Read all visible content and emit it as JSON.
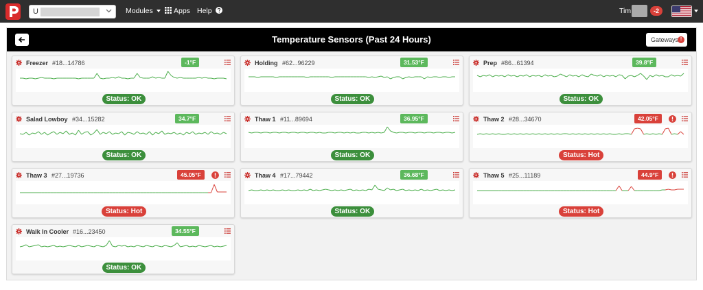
{
  "header": {
    "org_select_prefix": "U",
    "modules_label": "Modules",
    "apps_label": "Apps",
    "help_label": "Help",
    "user_name": "Tim",
    "notification_count": "-2"
  },
  "page": {
    "title": "Temperature Sensors (Past 24 Hours)",
    "gateways_label": "Gateways",
    "gateways_alert": "!"
  },
  "colors": {
    "ok": "#3c8f3c",
    "hot": "#d9413a",
    "temp_ok": "#5cb85c",
    "line_ok": "#4cae4c",
    "line_hot": "#d9413a"
  },
  "sensors": [
    {
      "name": "Freezer",
      "id": "#18...14786",
      "temp": "-1°F",
      "state": "ok",
      "status": "Status: OK",
      "readings": [
        20,
        20,
        19,
        20,
        20,
        19,
        20,
        21,
        20,
        20,
        20,
        19,
        20,
        20,
        20,
        20,
        20,
        20,
        20,
        19,
        20,
        20,
        20,
        20,
        20,
        27,
        20,
        19,
        20,
        20,
        21,
        20,
        22,
        20,
        20,
        19,
        20,
        20,
        27,
        21,
        20,
        20,
        20,
        22,
        20,
        21,
        20,
        20,
        30,
        24,
        21,
        20,
        21,
        20,
        20,
        20,
        20,
        20,
        21,
        20,
        21,
        20,
        20,
        19,
        20,
        20,
        20,
        19
      ]
    },
    {
      "name": "Holding",
      "id": "#62...96229",
      "temp": "31.53°F",
      "state": "ok",
      "status": "Status: OK",
      "readings": [
        22,
        22,
        22,
        21,
        22,
        22,
        22,
        22,
        22,
        21,
        22,
        22,
        22,
        22,
        22,
        22,
        22,
        22,
        22,
        21,
        22,
        22,
        22,
        22,
        22,
        22,
        22,
        21,
        22,
        22,
        22,
        22,
        22,
        22,
        22,
        22,
        22,
        22,
        22,
        21,
        22,
        21,
        22,
        23,
        21,
        22,
        19,
        21,
        22,
        22,
        19,
        21,
        22,
        21,
        22,
        22,
        22,
        19,
        22,
        21,
        22,
        22,
        21,
        22,
        22,
        21,
        22,
        22
      ]
    },
    {
      "name": "Prep",
      "id": "#86...61394",
      "temp": "39.8°F",
      "state": "ok",
      "status": "Status: OK",
      "readings": [
        24,
        22,
        24,
        23,
        25,
        22,
        24,
        23,
        24,
        22,
        25,
        23,
        24,
        22,
        24,
        23,
        25,
        22,
        24,
        23,
        24,
        22,
        25,
        23,
        24,
        22,
        23,
        26,
        24,
        22,
        25,
        23,
        24,
        22,
        25,
        23,
        22,
        26,
        24,
        23,
        25,
        22,
        24,
        23,
        24,
        22,
        25,
        24,
        19,
        23,
        24,
        22,
        24,
        27,
        23,
        18,
        24,
        22,
        25,
        23,
        24,
        22,
        22,
        25,
        23,
        24,
        23,
        27
      ]
    },
    {
      "name": "Salad Lowboy",
      "id": "#34...15282",
      "temp": "34.7°F",
      "state": "ok",
      "status": "Status: OK",
      "readings": [
        21,
        20,
        23,
        19,
        22,
        21,
        24,
        20,
        23,
        19,
        22,
        24,
        20,
        23,
        21,
        25,
        20,
        22,
        19,
        26,
        20,
        23,
        24,
        19,
        22,
        27,
        20,
        23,
        21,
        24,
        20,
        22,
        21,
        24,
        19,
        23,
        22,
        20,
        24,
        21,
        22,
        20,
        24,
        19,
        23,
        21,
        25,
        20,
        22,
        21,
        23,
        20,
        22,
        19,
        23,
        21,
        24,
        20,
        22,
        21,
        23,
        20,
        24,
        21,
        22,
        20,
        23,
        21
      ]
    },
    {
      "name": "Thaw 1",
      "id": "#11...89694",
      "temp": "36.95°F",
      "state": "ok",
      "status": "Status: OK",
      "readings": [
        23,
        22,
        23,
        23,
        22,
        23,
        23,
        22,
        23,
        23,
        22,
        23,
        23,
        22,
        23,
        23,
        22,
        23,
        23,
        22,
        23,
        23,
        22,
        23,
        22,
        22,
        23,
        23,
        22,
        23,
        23,
        22,
        23,
        22,
        23,
        22,
        22,
        23,
        23,
        22,
        23,
        22,
        23,
        22,
        23,
        31,
        25,
        23,
        22,
        23,
        23,
        22,
        23,
        23,
        22,
        23,
        23,
        22,
        23,
        23,
        22,
        23,
        23,
        22,
        23,
        23,
        22,
        23
      ]
    },
    {
      "name": "Thaw 2",
      "id": "#28...34670",
      "temp": "42.05°F",
      "state": "hot",
      "status": "Status: Hot",
      "readings": [
        20,
        21,
        20,
        21,
        20,
        21,
        20,
        21,
        20,
        20,
        21,
        20,
        21,
        20,
        21,
        20,
        21,
        20,
        21,
        20,
        21,
        20,
        21,
        20,
        21,
        20,
        21,
        20,
        21,
        21,
        20,
        21,
        20,
        21,
        20,
        21,
        20,
        21,
        20,
        21,
        20,
        21,
        20,
        21,
        20,
        20,
        21,
        20,
        21,
        21,
        20,
        28,
        29,
        28,
        20,
        21,
        20,
        21,
        20,
        21,
        20,
        28,
        29,
        20,
        21,
        20,
        24,
        20
      ]
    },
    {
      "name": "Thaw 3",
      "id": "#27...19736",
      "temp": "45.05°F",
      "state": "hot",
      "status": "Status: Hot",
      "readings": [
        17,
        17,
        17,
        17,
        17,
        17,
        17,
        17,
        17,
        17,
        17,
        17,
        17,
        17,
        17,
        17,
        17,
        17,
        17,
        17,
        17,
        17,
        17,
        17,
        17,
        17,
        17,
        17,
        17,
        17,
        17,
        17,
        17,
        17,
        17,
        17,
        17,
        17,
        17,
        17,
        17,
        17,
        17,
        17,
        17,
        17,
        17,
        17,
        17,
        17,
        17,
        17,
        17,
        17,
        17,
        17,
        17,
        17,
        17,
        17,
        17,
        17,
        17,
        29,
        18,
        18,
        18,
        18
      ]
    },
    {
      "name": "Thaw 4",
      "id": "#17...79442",
      "temp": "36.68°F",
      "state": "ok",
      "status": "Status: OK",
      "readings": [
        20,
        21,
        20,
        20,
        21,
        20,
        21,
        20,
        21,
        20,
        20,
        21,
        20,
        21,
        20,
        20,
        21,
        20,
        21,
        20,
        22,
        20,
        21,
        20,
        21,
        22,
        21,
        20,
        21,
        20,
        21,
        20,
        21,
        22,
        20,
        21,
        20,
        21,
        20,
        22,
        21,
        28,
        22,
        21,
        20,
        24,
        21,
        22,
        20,
        21,
        22,
        20,
        21,
        20,
        21,
        20,
        22,
        20,
        21,
        20,
        21,
        22,
        20,
        21,
        20,
        21,
        20,
        21
      ]
    },
    {
      "name": "Thaw 5",
      "id": "#25...11189",
      "temp": "44.9°F",
      "state": "hot",
      "status": "Status: Hot",
      "readings": [
        20,
        20,
        20,
        20,
        20,
        20,
        20,
        20,
        20,
        20,
        20,
        20,
        20,
        20,
        20,
        20,
        20,
        20,
        20,
        20,
        20,
        20,
        20,
        20,
        20,
        20,
        20,
        20,
        20,
        20,
        20,
        20,
        20,
        20,
        20,
        20,
        20,
        20,
        20,
        20,
        20,
        20,
        20,
        20,
        20,
        20,
        27,
        20,
        20,
        20,
        26,
        20,
        20,
        20,
        20,
        20,
        20,
        20,
        20,
        20,
        21,
        21,
        22,
        21,
        21,
        22,
        22,
        22
      ]
    },
    {
      "name": "Walk In Cooler",
      "id": "#16...23450",
      "temp": "34.55°F",
      "state": "ok",
      "status": "Status: OK",
      "readings": [
        20,
        21,
        23,
        20,
        21,
        22,
        23,
        20,
        21,
        20,
        21,
        22,
        20,
        21,
        20,
        21,
        22,
        21,
        20,
        22,
        20,
        21,
        22,
        21,
        20,
        22,
        21,
        20,
        22,
        29,
        21,
        20,
        22,
        21,
        22,
        20,
        21,
        20,
        22,
        21,
        20,
        22,
        21,
        20,
        22,
        21,
        20,
        22,
        21,
        20,
        22,
        26,
        20,
        21,
        22,
        20,
        21,
        20,
        22,
        21,
        20,
        21,
        22,
        20,
        21,
        20,
        21,
        22
      ]
    }
  ]
}
